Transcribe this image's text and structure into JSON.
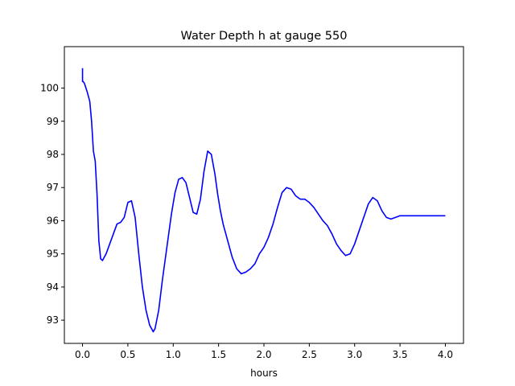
{
  "chart_data": {
    "type": "line",
    "title": "Water Depth h at gauge 550",
    "xlabel": "hours",
    "ylabel": "",
    "xlim": [
      -0.2,
      4.2
    ],
    "ylim": [
      92.3,
      101.25
    ],
    "xticks": [
      0.0,
      0.5,
      1.0,
      1.5,
      2.0,
      2.5,
      3.0,
      3.5,
      4.0
    ],
    "xtick_labels": [
      "0.0",
      "0.5",
      "1.0",
      "1.5",
      "2.0",
      "2.5",
      "3.0",
      "3.5",
      "4.0"
    ],
    "yticks": [
      93,
      94,
      95,
      96,
      97,
      98,
      99,
      100
    ],
    "ytick_labels": [
      "93",
      "94",
      "95",
      "96",
      "97",
      "98",
      "99",
      "100"
    ],
    "grid": false,
    "legend": "none",
    "series": [
      {
        "color": "#0000ff",
        "x": [
          0.0,
          0.0,
          0.0,
          0.02,
          0.05,
          0.08,
          0.1,
          0.12,
          0.14,
          0.16,
          0.18,
          0.2,
          0.22,
          0.24,
          0.26,
          0.3,
          0.34,
          0.38,
          0.42,
          0.46,
          0.5,
          0.54,
          0.58,
          0.62,
          0.66,
          0.7,
          0.74,
          0.78,
          0.8,
          0.84,
          0.88,
          0.93,
          0.98,
          1.02,
          1.06,
          1.1,
          1.14,
          1.18,
          1.22,
          1.26,
          1.3,
          1.34,
          1.38,
          1.42,
          1.46,
          1.49,
          1.52,
          1.55,
          1.6,
          1.65,
          1.7,
          1.75,
          1.8,
          1.85,
          1.9,
          1.95,
          2.0,
          2.05,
          2.1,
          2.15,
          2.2,
          2.25,
          2.3,
          2.35,
          2.4,
          2.45,
          2.5,
          2.55,
          2.6,
          2.65,
          2.7,
          2.75,
          2.8,
          2.85,
          2.9,
          2.95,
          3.0,
          3.05,
          3.1,
          3.15,
          3.2,
          3.25,
          3.3,
          3.35,
          3.4,
          3.45,
          3.5,
          3.55,
          3.6,
          3.65,
          3.7,
          3.75,
          3.8,
          3.85,
          3.9,
          3.95,
          4.0
        ],
        "y": [
          100.6,
          100.2,
          100.22,
          100.15,
          99.9,
          99.6,
          99.0,
          98.1,
          97.8,
          96.8,
          95.4,
          94.85,
          94.8,
          94.9,
          95.0,
          95.3,
          95.6,
          95.9,
          95.95,
          96.1,
          96.55,
          96.6,
          96.1,
          95.0,
          94.0,
          93.3,
          92.85,
          92.65,
          92.75,
          93.3,
          94.2,
          95.2,
          96.2,
          96.85,
          97.25,
          97.3,
          97.15,
          96.7,
          96.25,
          96.2,
          96.65,
          97.5,
          98.1,
          98.0,
          97.4,
          96.8,
          96.3,
          95.9,
          95.4,
          94.9,
          94.55,
          94.4,
          94.45,
          94.55,
          94.7,
          95.0,
          95.2,
          95.5,
          95.9,
          96.4,
          96.85,
          97.0,
          96.95,
          96.75,
          96.65,
          96.65,
          96.55,
          96.4,
          96.2,
          96.0,
          95.85,
          95.6,
          95.3,
          95.1,
          94.95,
          95.0,
          95.3,
          95.7,
          96.1,
          96.5,
          96.7,
          96.6,
          96.3,
          96.1,
          96.05,
          96.1,
          96.15,
          96.15,
          96.15,
          96.15,
          96.15,
          96.15,
          96.15,
          96.15,
          96.15,
          96.15,
          96.15
        ]
      }
    ]
  }
}
